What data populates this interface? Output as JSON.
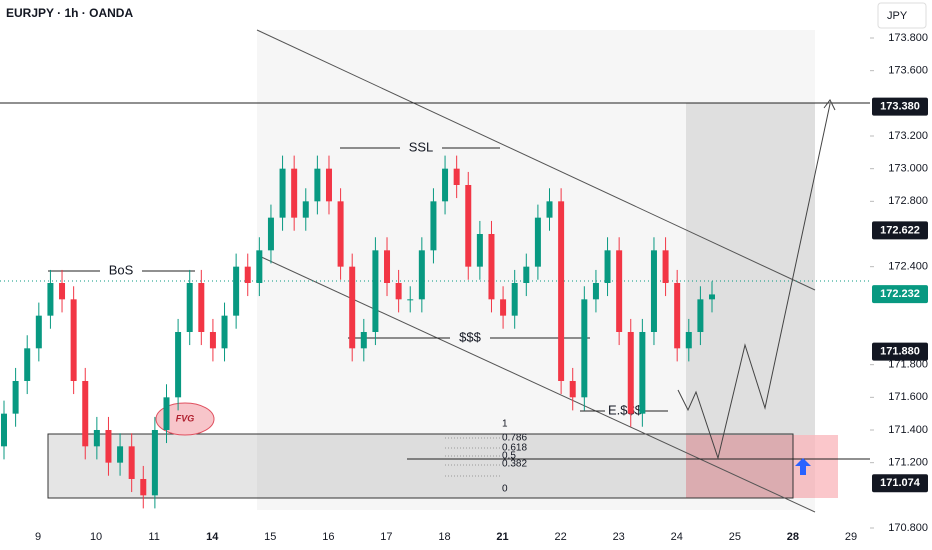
{
  "chart_data": {
    "type": "candlestick",
    "title": "EURJPY · 1h · OANDA",
    "currency": "JPY",
    "categories": [
      "9",
      "10",
      "11",
      "14",
      "15",
      "16",
      "17",
      "18",
      "21",
      "22",
      "23",
      "24",
      "25",
      "28",
      "29"
    ],
    "bold_categories": [
      "14",
      "21",
      "28"
    ],
    "up_color": "#089981",
    "down_color": "#f23645",
    "open": [
      171.3,
      171.5,
      171.7,
      171.9,
      172.1,
      172.3,
      172.2,
      171.7,
      171.3,
      171.4,
      171.2,
      171.3,
      171.1,
      171.0,
      171.4,
      171.6,
      172.0,
      172.3,
      172.0,
      171.9,
      172.1,
      172.4,
      172.3,
      172.5,
      172.7,
      173.0,
      172.7,
      172.8,
      173.0,
      172.8,
      172.4,
      171.9,
      172.0,
      172.5,
      172.3,
      172.2,
      172.2,
      172.5,
      172.8,
      173.0,
      172.9,
      172.4,
      172.6,
      172.2,
      172.1,
      172.3,
      172.4,
      172.7,
      172.8,
      171.7,
      171.6,
      172.2,
      172.3,
      172.5,
      172.0,
      171.5,
      172.0,
      172.5,
      172.3,
      171.9,
      172.0,
      172.2
    ],
    "high": [
      171.58,
      171.78,
      171.98,
      172.18,
      172.38,
      172.38,
      172.28,
      171.78,
      171.48,
      171.48,
      171.38,
      171.38,
      171.18,
      171.48,
      171.68,
      172.08,
      172.38,
      172.38,
      172.08,
      172.18,
      172.48,
      172.48,
      172.58,
      172.78,
      173.08,
      173.08,
      172.88,
      173.08,
      173.08,
      172.88,
      172.48,
      172.08,
      172.58,
      172.58,
      172.38,
      172.28,
      172.58,
      172.88,
      173.08,
      173.08,
      172.98,
      172.68,
      172.68,
      172.28,
      172.38,
      172.48,
      172.78,
      172.88,
      172.88,
      171.78,
      172.28,
      172.38,
      172.58,
      172.58,
      172.08,
      172.08,
      172.58,
      172.58,
      172.38,
      172.08,
      172.28,
      172.31
    ],
    "low": [
      171.22,
      171.42,
      171.62,
      171.82,
      172.02,
      172.12,
      171.62,
      171.22,
      171.22,
      171.12,
      171.12,
      171.02,
      170.92,
      170.92,
      171.32,
      171.52,
      171.92,
      171.92,
      171.82,
      171.82,
      172.02,
      172.22,
      172.22,
      172.42,
      172.62,
      172.62,
      172.62,
      172.72,
      172.72,
      172.32,
      171.82,
      171.82,
      171.92,
      172.22,
      172.12,
      172.12,
      172.12,
      172.42,
      172.72,
      172.82,
      172.32,
      172.32,
      172.12,
      172.02,
      172.02,
      172.22,
      172.32,
      172.62,
      171.62,
      171.52,
      171.52,
      172.12,
      172.22,
      171.92,
      171.42,
      171.42,
      171.92,
      172.22,
      171.82,
      171.82,
      171.92,
      172.12
    ],
    "close": [
      171.5,
      171.7,
      171.9,
      172.1,
      172.3,
      172.2,
      171.7,
      171.3,
      171.4,
      171.2,
      171.3,
      171.1,
      171.0,
      171.4,
      171.6,
      172.0,
      172.3,
      172.0,
      171.9,
      172.1,
      172.4,
      172.3,
      172.5,
      172.7,
      173.0,
      172.7,
      172.8,
      173.0,
      172.8,
      172.4,
      171.9,
      172.0,
      172.5,
      172.3,
      172.2,
      172.2,
      172.5,
      172.8,
      173.0,
      172.9,
      172.4,
      172.6,
      172.2,
      172.1,
      172.3,
      172.4,
      172.7,
      172.8,
      171.7,
      171.6,
      172.2,
      172.3,
      172.5,
      172.0,
      171.5,
      172.0,
      172.5,
      172.3,
      171.9,
      172.0,
      172.2,
      172.23
    ],
    "ylim": [
      170.7,
      173.95
    ],
    "yticks": [
      {
        "value": 173.8,
        "label": "173.800"
      },
      {
        "value": 173.6,
        "label": "173.600"
      },
      {
        "value": 173.2,
        "label": "173.200"
      },
      {
        "value": 173.0,
        "label": "173.000"
      },
      {
        "value": 172.8,
        "label": "172.800"
      },
      {
        "value": 172.4,
        "label": "172.400"
      },
      {
        "value": 171.8,
        "label": "171.800"
      },
      {
        "value": 171.6,
        "label": "171.600"
      },
      {
        "value": 171.4,
        "label": "171.400"
      },
      {
        "value": 171.2,
        "label": "171.200"
      },
      {
        "value": 170.8,
        "label": "170.800"
      }
    ],
    "price_labels": [
      {
        "value": 173.38,
        "label": "173.380",
        "color": "#131722"
      },
      {
        "value": 172.622,
        "label": "172.622",
        "color": "#131722"
      },
      {
        "value": 172.232,
        "label": "172.232",
        "color": "#089981"
      },
      {
        "value": 171.88,
        "label": "171.880",
        "color": "#131722"
      },
      {
        "value": 171.074,
        "label": "171.074",
        "color": "#131722"
      }
    ],
    "annotations": [
      "BoS",
      "SSL",
      "$$$",
      "E.$$$",
      "FVG"
    ],
    "fib_levels": [
      "1",
      "0.786",
      "0.618",
      "0.5",
      "0.382",
      "0"
    ]
  }
}
